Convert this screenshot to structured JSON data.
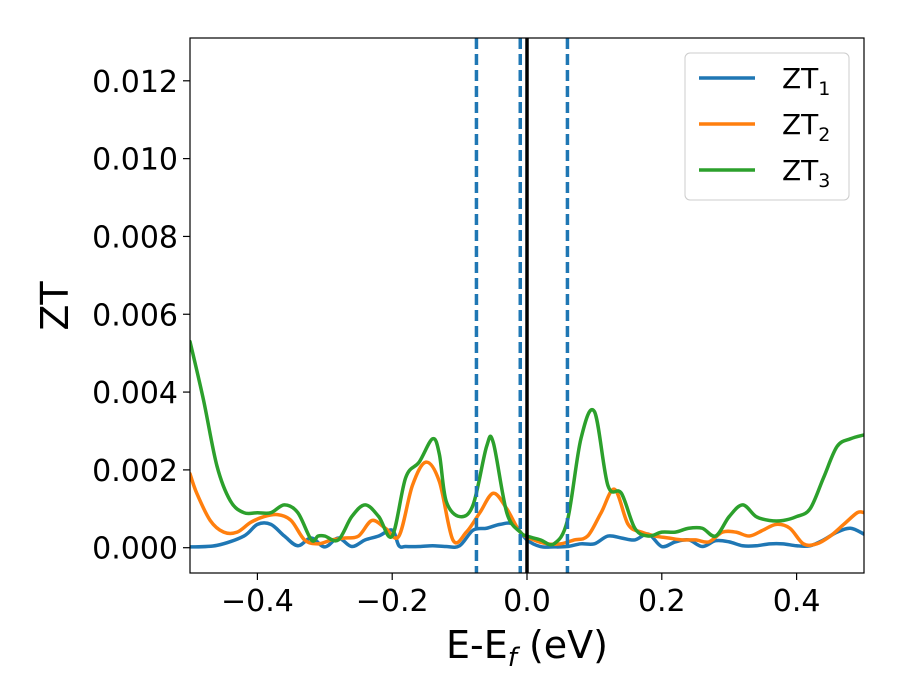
{
  "chart_data": {
    "type": "line",
    "xlabel": "E-E",
    "xlabel_sub": "f",
    "xlabel_unit": " (eV)",
    "ylabel": "ZT",
    "xlim": [
      -0.5,
      0.5
    ],
    "ylim": [
      -0.00065,
      0.0131
    ],
    "xticks": [
      -0.4,
      -0.2,
      0.0,
      0.2,
      0.4
    ],
    "xtick_labels": [
      "−0.4",
      "−0.2",
      "0.0",
      "0.2",
      "0.4"
    ],
    "yticks": [
      0.0,
      0.002,
      0.004,
      0.006,
      0.008,
      0.01,
      0.012
    ],
    "ytick_labels": [
      "0.000",
      "0.002",
      "0.004",
      "0.006",
      "0.008",
      "0.010",
      "0.012"
    ],
    "grid": false,
    "legend_position": "top-right",
    "vlines": [
      {
        "x": -0.075,
        "style": "dashed",
        "color": "#1f77b4"
      },
      {
        "x": -0.01,
        "style": "dashed",
        "color": "#1f77b4"
      },
      {
        "x": 0.0,
        "style": "solid",
        "color": "#000000"
      },
      {
        "x": 0.06,
        "style": "dashed",
        "color": "#1f77b4"
      }
    ],
    "series": [
      {
        "name": "ZT",
        "subscript": "1",
        "color": "#1f77b4",
        "x": [
          -0.5,
          -0.46,
          -0.42,
          -0.4,
          -0.38,
          -0.36,
          -0.34,
          -0.32,
          -0.3,
          -0.28,
          -0.26,
          -0.24,
          -0.22,
          -0.2,
          -0.19,
          -0.18,
          -0.16,
          -0.14,
          -0.12,
          -0.1,
          -0.08,
          -0.06,
          -0.04,
          -0.02,
          0.0,
          0.02,
          0.04,
          0.06,
          0.08,
          0.1,
          0.12,
          0.14,
          0.16,
          0.18,
          0.2,
          0.22,
          0.24,
          0.26,
          0.28,
          0.3,
          0.32,
          0.34,
          0.36,
          0.38,
          0.4,
          0.42,
          0.44,
          0.46,
          0.48,
          0.5
        ],
        "y": [
          2e-05,
          6e-05,
          0.0003,
          0.0006,
          0.0006,
          0.0003,
          5e-05,
          0.00025,
          2e-05,
          0.00025,
          3e-05,
          0.0002,
          0.0003,
          0.00045,
          5e-05,
          3e-05,
          3e-05,
          5e-05,
          3e-05,
          5e-05,
          0.00045,
          0.0005,
          0.0006,
          0.0006,
          0.0002,
          3e-05,
          2e-05,
          3e-05,
          0.0001,
          0.0001,
          0.0003,
          0.00025,
          0.0002,
          0.00035,
          3e-05,
          0.00015,
          0.0002,
          3e-05,
          0.00018,
          0.00015,
          5e-05,
          5e-05,
          0.0001,
          0.0001,
          5e-05,
          5e-05,
          0.0002,
          0.0004,
          0.0005,
          0.00035
        ]
      },
      {
        "name": "ZT",
        "subscript": "2",
        "color": "#ff7f0e",
        "x": [
          -0.5,
          -0.49,
          -0.47,
          -0.45,
          -0.43,
          -0.41,
          -0.39,
          -0.37,
          -0.35,
          -0.33,
          -0.31,
          -0.29,
          -0.27,
          -0.25,
          -0.23,
          -0.21,
          -0.19,
          -0.17,
          -0.15,
          -0.13,
          -0.11,
          -0.09,
          -0.07,
          -0.05,
          -0.03,
          -0.01,
          0.01,
          0.03,
          0.05,
          0.07,
          0.09,
          0.11,
          0.13,
          0.15,
          0.17,
          0.19,
          0.21,
          0.23,
          0.25,
          0.27,
          0.29,
          0.31,
          0.33,
          0.35,
          0.37,
          0.39,
          0.41,
          0.43,
          0.45,
          0.47,
          0.49,
          0.5
        ],
        "y": [
          0.0019,
          0.0014,
          0.0007,
          0.0004,
          0.0004,
          0.00065,
          0.0008,
          0.00085,
          0.0007,
          0.0002,
          0.0001,
          0.0002,
          0.00025,
          0.0003,
          0.0007,
          0.0005,
          0.0003,
          0.0016,
          0.0022,
          0.0017,
          0.0002,
          0.0004,
          0.0009,
          0.0014,
          0.001,
          0.0004,
          0.0002,
          0.0001,
          0.0001,
          0.0002,
          0.0003,
          0.0009,
          0.0015,
          0.0006,
          0.0004,
          0.0003,
          0.00025,
          0.0002,
          0.0002,
          0.00015,
          0.0004,
          0.0004,
          0.0003,
          0.00045,
          0.0006,
          0.0005,
          0.0001,
          0.0001,
          0.0003,
          0.0006,
          0.0009,
          0.0009
        ]
      },
      {
        "name": "ZT",
        "subscript": "3",
        "color": "#2ca02c",
        "x": [
          -0.5,
          -0.48,
          -0.46,
          -0.44,
          -0.42,
          -0.4,
          -0.38,
          -0.36,
          -0.34,
          -0.32,
          -0.31,
          -0.3,
          -0.28,
          -0.26,
          -0.24,
          -0.22,
          -0.2,
          -0.18,
          -0.16,
          -0.14,
          -0.13,
          -0.12,
          -0.1,
          -0.08,
          -0.06,
          -0.05,
          -0.03,
          -0.01,
          0.0,
          0.02,
          0.04,
          0.06,
          0.08,
          0.1,
          0.12,
          0.14,
          0.16,
          0.18,
          0.2,
          0.22,
          0.24,
          0.26,
          0.28,
          0.3,
          0.32,
          0.34,
          0.36,
          0.38,
          0.4,
          0.42,
          0.44,
          0.46,
          0.48,
          0.5
        ],
        "y": [
          0.0053,
          0.0038,
          0.0021,
          0.0012,
          0.0009,
          0.0009,
          0.0009,
          0.0011,
          0.0009,
          0.0002,
          0.0003,
          0.0003,
          0.0002,
          0.0008,
          0.0011,
          0.0008,
          0.0003,
          0.0018,
          0.0022,
          0.0028,
          0.0024,
          0.0012,
          0.0008,
          0.0011,
          0.0026,
          0.0027,
          0.0009,
          0.0004,
          0.0003,
          0.0002,
          0.0001,
          0.0007,
          0.0028,
          0.0035,
          0.0016,
          0.0014,
          0.0005,
          0.0003,
          0.0004,
          0.0004,
          0.0005,
          0.0005,
          0.0003,
          0.0008,
          0.0011,
          0.0008,
          0.0007,
          0.0007,
          0.0008,
          0.001,
          0.0018,
          0.0026,
          0.0028,
          0.0029
        ]
      }
    ]
  }
}
